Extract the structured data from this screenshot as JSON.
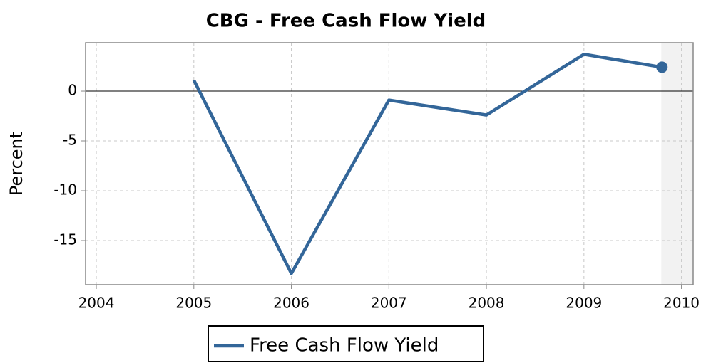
{
  "chart_data": {
    "type": "line",
    "title": "CBG - Free Cash Flow Yield",
    "y_label": "Percent",
    "x": [
      2005,
      2006,
      2007,
      2008,
      2009,
      2009.8
    ],
    "series": [
      {
        "name": "Free Cash Flow Yield",
        "color": "#336699",
        "values": [
          1.1,
          -18.3,
          -0.9,
          -2.4,
          3.7,
          2.4
        ]
      }
    ],
    "xlim": [
      2003.89,
      2010.12
    ],
    "xticks": [
      2004,
      2005,
      2006,
      2007,
      2008,
      2009,
      2010
    ],
    "ylim": [
      -19.43,
      4.86
    ],
    "yticks": [
      -15,
      -10,
      -5,
      0
    ],
    "grid": true,
    "legend": "bottom",
    "marker_last": true,
    "shade_after_last": true
  }
}
